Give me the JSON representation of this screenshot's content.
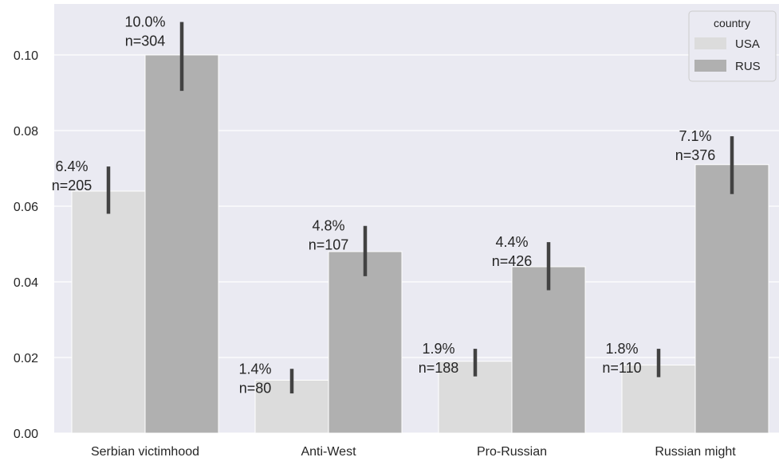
{
  "chart_data": {
    "type": "bar",
    "title": "",
    "xlabel": "",
    "ylabel": "",
    "categories": [
      "Serbian victimhood",
      "Anti-West",
      "Pro-Russian",
      "Russian might"
    ],
    "series": [
      {
        "name": "USA",
        "color": "#dcdcdc",
        "values": [
          0.064,
          0.014,
          0.019,
          0.018
        ],
        "ci_low": [
          0.058,
          0.0105,
          0.015,
          0.0148
        ],
        "ci_high": [
          0.0705,
          0.017,
          0.0223,
          0.0223
        ],
        "pct_labels": [
          "6.4%",
          "1.4%",
          "1.9%",
          "1.8%"
        ],
        "n_labels": [
          "n=205",
          "n=80",
          "n=188",
          "n=110"
        ]
      },
      {
        "name": "RUS",
        "color": "#b0b0b0",
        "values": [
          0.1,
          0.048,
          0.044,
          0.071
        ],
        "ci_low": [
          0.0905,
          0.0415,
          0.0378,
          0.0632
        ],
        "ci_high": [
          0.1087,
          0.0548,
          0.0505,
          0.0785
        ],
        "pct_labels": [
          "10.0%",
          "4.8%",
          "4.4%",
          "7.1%"
        ],
        "n_labels": [
          "n=304",
          "n=107",
          "n=426",
          "n=376"
        ]
      }
    ],
    "ylim": [
      0,
      0.113
    ],
    "yticks": [
      "0.00",
      "0.02",
      "0.04",
      "0.06",
      "0.08",
      "0.10"
    ],
    "grid": true,
    "legend": {
      "title": "country",
      "placement": "top-right"
    }
  }
}
